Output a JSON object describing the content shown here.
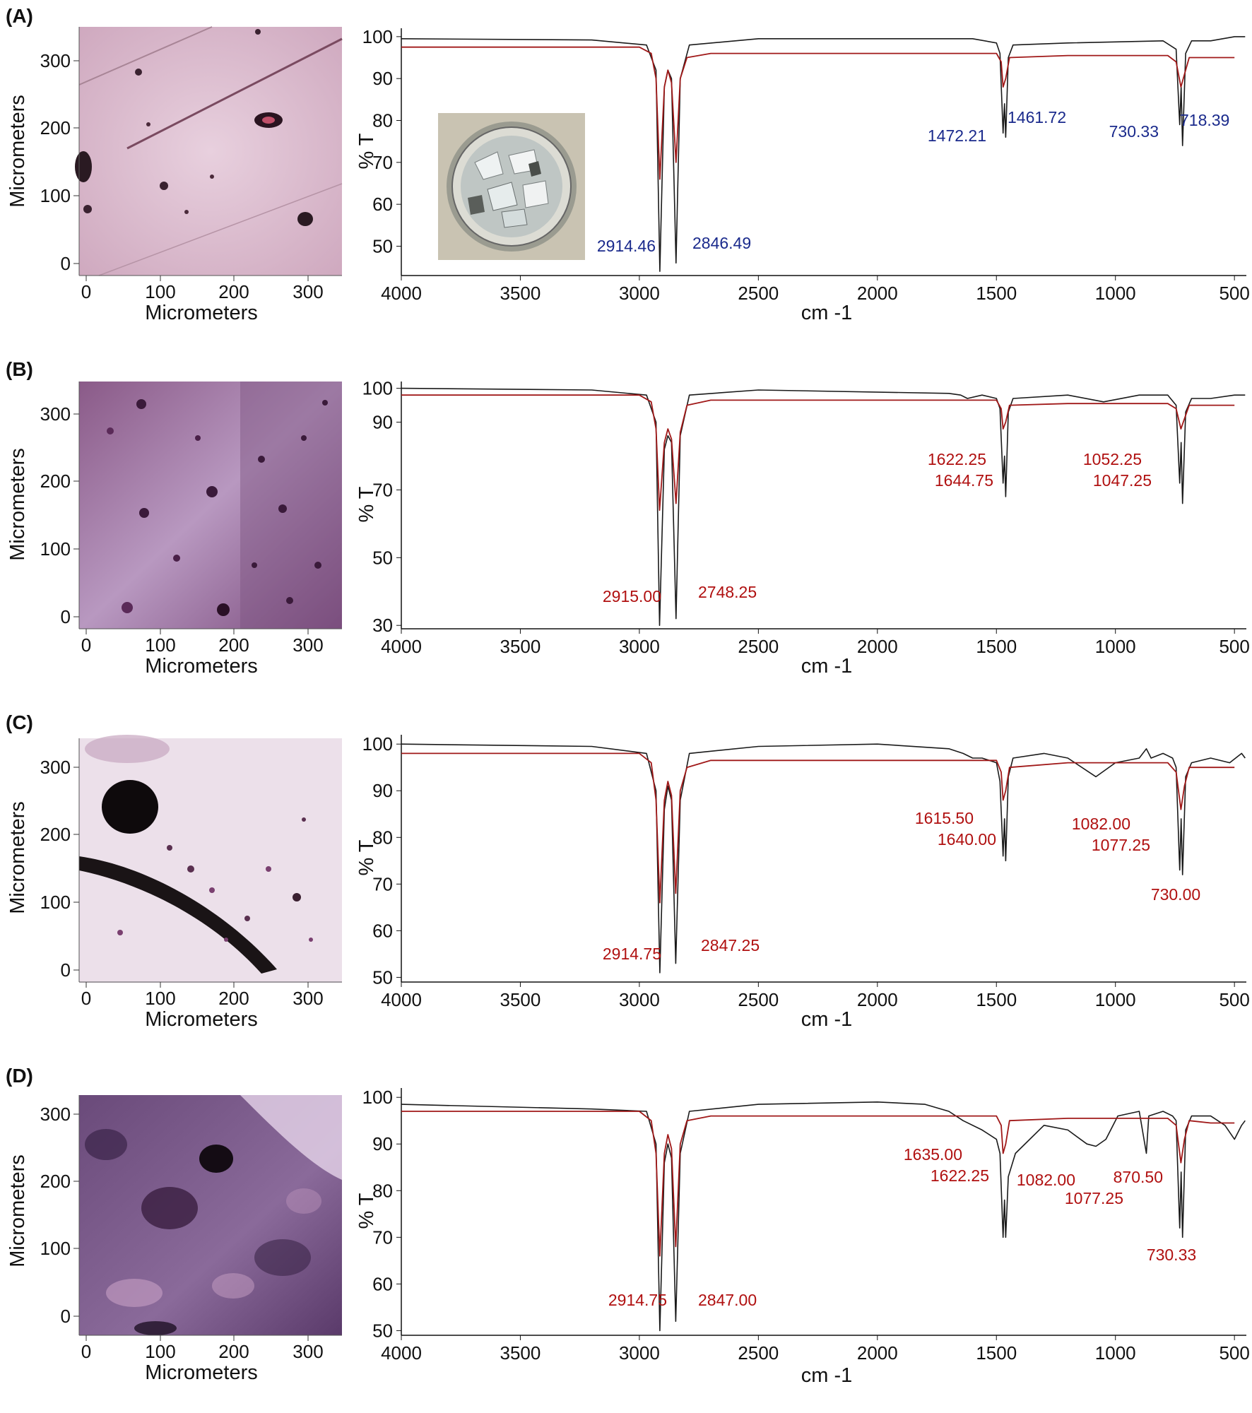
{
  "colors": {
    "sample": "#1a1a1a",
    "reference": "#a01818",
    "peak_blue": "#1a2a8c",
    "peak_red": "#b01010"
  },
  "micrograph_axes": {
    "x_title": "Micrometers",
    "y_title": "Micrometers",
    "x_ticks": [
      "0",
      "100",
      "200",
      "300"
    ],
    "y_ticks": [
      "0",
      "100",
      "200",
      "300"
    ]
  },
  "spectrum_axes": {
    "x_title": "cm -1",
    "y_title": "% T",
    "x_ticks": [
      "4000",
      "3500",
      "3000",
      "2500",
      "2000",
      "1500",
      "1000",
      "500"
    ]
  },
  "panels": [
    {
      "letter": "(A)",
      "micrograph": "pale pink polymer surface with a few dark particles and scratches",
      "inset": "petri dish with clear polymer fragments",
      "y_ticks": [
        "50",
        "60",
        "70",
        "80",
        "90",
        "100"
      ],
      "peaks": [
        "2914.46",
        "2846.49",
        "1472.21",
        "1461.72",
        "730.33",
        "718.39"
      ]
    },
    {
      "letter": "(B)",
      "micrograph": "purple stained surface densely covered with small dark particles",
      "y_ticks": [
        "30",
        "50",
        "70",
        "90",
        "100"
      ],
      "peaks": [
        "2915.00",
        "2748.25",
        "1622.25",
        "1644.75",
        "1052.25",
        "1047.25"
      ]
    },
    {
      "letter": "(C)",
      "micrograph": "light surface with a large dark blob, a dark curved filament and scattered purple debris",
      "y_ticks": [
        "50",
        "60",
        "70",
        "80",
        "90",
        "100"
      ],
      "peaks": [
        "2914.75",
        "2847.25",
        "1615.50",
        "1640.00",
        "1082.00",
        "1077.25",
        "730.00"
      ]
    },
    {
      "letter": "(D)",
      "micrograph": "dark mottled purple surface with a dark particle and pink patches",
      "y_ticks": [
        "50",
        "60",
        "70",
        "80",
        "90",
        "100"
      ],
      "peaks": [
        "2914.75",
        "2847.00",
        "1635.00",
        "1622.25",
        "1082.00",
        "1077.25",
        "870.50",
        "730.33"
      ]
    }
  ],
  "chart_data": [
    {
      "type": "line",
      "panel": "(A)",
      "xlabel": "cm -1",
      "ylabel": "% T",
      "xlim": [
        4000,
        450
      ],
      "ylim": [
        43,
        102
      ],
      "series": [
        {
          "color": "#1a1a1a",
          "x": [
            4000,
            3200,
            2970,
            2930,
            2914,
            2895,
            2880,
            2865,
            2846,
            2828,
            2790,
            2500,
            1600,
            1500,
            1485,
            1472,
            1466,
            1461,
            1450,
            1430,
            1200,
            800,
            745,
            730,
            724,
            718,
            705,
            680,
            600,
            500,
            455
          ],
          "y": [
            99.5,
            99.2,
            98,
            92,
            44,
            88,
            92,
            90,
            46,
            90,
            98,
            99.5,
            99.5,
            98.5,
            96,
            77,
            84,
            76,
            95,
            98,
            98.5,
            99,
            97,
            79,
            88,
            74,
            96,
            99,
            99,
            100,
            100
          ]
        },
        {
          "color": "#a01818",
          "x": [
            4000,
            3000,
            2950,
            2930,
            2914,
            2895,
            2880,
            2865,
            2846,
            2828,
            2800,
            2700,
            1500,
            1480,
            1472,
            1461,
            1445,
            1200,
            780,
            745,
            725,
            710,
            690,
            600,
            500
          ],
          "y": [
            97.5,
            97.5,
            96,
            90,
            66,
            88,
            92,
            89,
            70,
            90,
            95,
            96,
            96,
            94,
            88,
            90,
            95,
            95.5,
            95.5,
            94,
            88,
            91,
            95,
            95,
            95
          ]
        }
      ]
    },
    {
      "type": "line",
      "panel": "(B)",
      "xlabel": "cm -1",
      "ylabel": "% T",
      "xlim": [
        4000,
        450
      ],
      "ylim": [
        29,
        102
      ],
      "series": [
        {
          "color": "#1a1a1a",
          "x": [
            4000,
            3200,
            2970,
            2930,
            2915,
            2895,
            2880,
            2865,
            2846,
            2828,
            2790,
            2500,
            1700,
            1650,
            1622,
            1560,
            1500,
            1485,
            1472,
            1466,
            1461,
            1450,
            1430,
            1200,
            1050,
            900,
            780,
            745,
            730,
            724,
            718,
            705,
            680,
            600,
            500,
            455
          ],
          "y": [
            100,
            99.5,
            98,
            90,
            30,
            82,
            86,
            84,
            32,
            86,
            98,
            99.5,
            98.5,
            98,
            97,
            98,
            97,
            94,
            72,
            80,
            68,
            93,
            97,
            98,
            96,
            98,
            98,
            95,
            72,
            84,
            66,
            93,
            97,
            97,
            98,
            98
          ]
        },
        {
          "color": "#a01818",
          "x": [
            4000,
            3000,
            2950,
            2930,
            2915,
            2895,
            2880,
            2865,
            2846,
            2828,
            2800,
            2700,
            1500,
            1480,
            1472,
            1461,
            1445,
            1200,
            780,
            745,
            725,
            710,
            690,
            600,
            500
          ],
          "y": [
            98,
            98,
            96,
            88,
            64,
            84,
            88,
            85,
            66,
            87,
            95,
            96.5,
            96.5,
            94,
            88,
            90,
            95,
            95.5,
            95.5,
            94,
            88,
            91,
            95,
            95,
            95
          ]
        }
      ]
    },
    {
      "type": "line",
      "panel": "(C)",
      "xlabel": "cm -1",
      "ylabel": "% T",
      "xlim": [
        4000,
        450
      ],
      "ylim": [
        49,
        102
      ],
      "series": [
        {
          "color": "#1a1a1a",
          "x": [
            4000,
            3200,
            2970,
            2930,
            2914,
            2895,
            2880,
            2865,
            2847,
            2828,
            2790,
            2500,
            2000,
            1700,
            1640,
            1600,
            1560,
            1500,
            1485,
            1472,
            1466,
            1461,
            1450,
            1430,
            1300,
            1200,
            1082,
            1000,
            900,
            870,
            850,
            800,
            760,
            745,
            730,
            724,
            718,
            705,
            680,
            600,
            520,
            470,
            455
          ],
          "y": [
            100,
            99.5,
            98,
            90,
            51,
            86,
            91,
            88,
            53,
            88,
            98,
            99.5,
            100,
            99,
            98,
            97,
            97,
            96,
            92,
            76,
            84,
            75,
            93,
            97,
            98,
            97,
            93,
            96,
            97,
            99,
            97,
            98,
            97,
            95,
            73,
            84,
            72,
            93,
            96,
            97,
            96,
            98,
            97
          ]
        },
        {
          "color": "#a01818",
          "x": [
            4000,
            3000,
            2950,
            2930,
            2914,
            2895,
            2880,
            2865,
            2847,
            2828,
            2800,
            2700,
            1500,
            1480,
            1472,
            1461,
            1445,
            1200,
            780,
            745,
            725,
            710,
            690,
            600,
            500
          ],
          "y": [
            98,
            98,
            96,
            88,
            66,
            88,
            92,
            89,
            68,
            90,
            95,
            96.5,
            96.5,
            94,
            88,
            90,
            95,
            96,
            96,
            94,
            86,
            91,
            95,
            95,
            95
          ]
        }
      ]
    },
    {
      "type": "line",
      "panel": "(D)",
      "xlabel": "cm -1",
      "ylabel": "% T",
      "xlim": [
        4000,
        450
      ],
      "ylim": [
        49,
        102
      ],
      "series": [
        {
          "color": "#1a1a1a",
          "x": [
            4000,
            3200,
            2970,
            2930,
            2914,
            2895,
            2880,
            2865,
            2847,
            2828,
            2790,
            2500,
            2000,
            1800,
            1700,
            1640,
            1560,
            1500,
            1485,
            1472,
            1466,
            1461,
            1450,
            1420,
            1300,
            1200,
            1120,
            1082,
            1040,
            990,
            900,
            870,
            860,
            800,
            760,
            745,
            730,
            724,
            718,
            705,
            680,
            600,
            540,
            500,
            470,
            455
          ],
          "y": [
            98.5,
            97.5,
            97,
            90,
            50,
            86,
            90,
            87,
            52,
            88,
            97,
            98.5,
            99,
            98.5,
            97,
            95,
            93,
            91,
            88,
            70,
            78,
            70,
            83,
            88,
            94,
            93,
            90,
            89.5,
            91,
            96,
            97,
            88,
            96,
            97,
            96,
            95,
            72,
            84,
            70,
            93,
            96,
            96,
            94,
            91,
            94,
            95
          ]
        },
        {
          "color": "#a01818",
          "x": [
            4000,
            3000,
            2950,
            2930,
            2914,
            2895,
            2880,
            2865,
            2847,
            2828,
            2800,
            2700,
            1500,
            1480,
            1472,
            1461,
            1445,
            1200,
            780,
            745,
            725,
            710,
            690,
            600,
            500
          ],
          "y": [
            97,
            97,
            95,
            88,
            66,
            88,
            92,
            89,
            68,
            90,
            95,
            96,
            96,
            94,
            88,
            90,
            95,
            95.5,
            95.5,
            94,
            86,
            91,
            95,
            94.5,
            94.5
          ]
        }
      ]
    }
  ]
}
